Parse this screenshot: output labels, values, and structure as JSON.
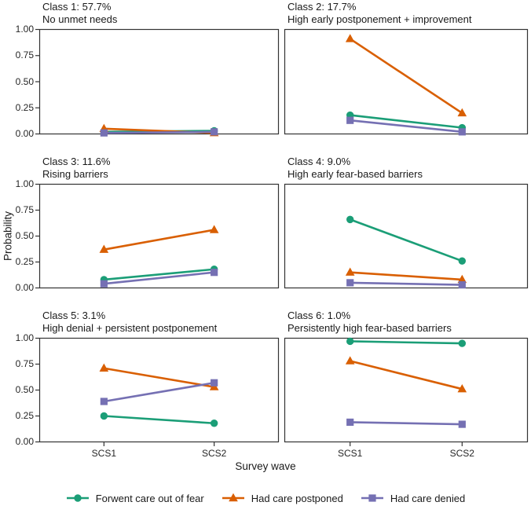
{
  "figure": {
    "ylabel": "Probability",
    "xlabel": "Survey wave"
  },
  "legend": {
    "position": "bottom",
    "items": [
      {
        "label": "Forwent care out of fear",
        "color": "#1B9E77",
        "marker": "circle"
      },
      {
        "label": "Had care postponed",
        "color": "#D95F02",
        "marker": "triangle"
      },
      {
        "label": "Had care denied",
        "color": "#7570B3",
        "marker": "square"
      }
    ]
  },
  "chart_data": {
    "type": "line",
    "grid": false,
    "panel_border": true,
    "x_categories": [
      "SCS1",
      "SCS2"
    ],
    "ylim": [
      0,
      1
    ],
    "yticks": [
      {
        "label": "0.00",
        "value": 0.0
      },
      {
        "label": "0.25",
        "value": 0.25
      },
      {
        "label": "0.50",
        "value": 0.5
      },
      {
        "label": "0.75",
        "value": 0.75
      },
      {
        "label": "1.00",
        "value": 1.0
      }
    ],
    "facets": [
      {
        "title": "Class 1: 57.7%",
        "subtitle": "No unmet needs",
        "series": [
          {
            "name": "Forwent care out of fear",
            "values": [
              0.02,
              0.03
            ]
          },
          {
            "name": "Had care postponed",
            "values": [
              0.05,
              0.01
            ]
          },
          {
            "name": "Had care denied",
            "values": [
              0.01,
              0.02
            ]
          }
        ]
      },
      {
        "title": "Class 2: 17.7%",
        "subtitle": "High early postponement + improvement",
        "series": [
          {
            "name": "Forwent care out of fear",
            "values": [
              0.18,
              0.06
            ]
          },
          {
            "name": "Had care postponed",
            "values": [
              0.91,
              0.2
            ]
          },
          {
            "name": "Had care denied",
            "values": [
              0.13,
              0.02
            ]
          }
        ]
      },
      {
        "title": "Class 3: 11.6%",
        "subtitle": "Rising barriers",
        "series": [
          {
            "name": "Forwent care out of fear",
            "values": [
              0.08,
              0.18
            ]
          },
          {
            "name": "Had care postponed",
            "values": [
              0.37,
              0.56
            ]
          },
          {
            "name": "Had care denied",
            "values": [
              0.04,
              0.15
            ]
          }
        ]
      },
      {
        "title": "Class 4: 9.0%",
        "subtitle": "High early fear-based barriers",
        "series": [
          {
            "name": "Forwent care out of fear",
            "values": [
              0.66,
              0.26
            ]
          },
          {
            "name": "Had care postponed",
            "values": [
              0.15,
              0.08
            ]
          },
          {
            "name": "Had care denied",
            "values": [
              0.05,
              0.03
            ]
          }
        ]
      },
      {
        "title": "Class 5: 3.1%",
        "subtitle": "High denial + persistent postponement",
        "series": [
          {
            "name": "Forwent care out of fear",
            "values": [
              0.25,
              0.18
            ]
          },
          {
            "name": "Had care postponed",
            "values": [
              0.71,
              0.53
            ]
          },
          {
            "name": "Had care denied",
            "values": [
              0.39,
              0.57
            ]
          }
        ]
      },
      {
        "title": "Class 6: 1.0%",
        "subtitle": "Persistently high fear-based barriers",
        "series": [
          {
            "name": "Forwent care out of fear",
            "values": [
              0.97,
              0.95
            ]
          },
          {
            "name": "Had care postponed",
            "values": [
              0.78,
              0.51
            ]
          },
          {
            "name": "Had care denied",
            "values": [
              0.19,
              0.17
            ]
          }
        ]
      }
    ]
  },
  "style": {
    "panel_border_color": "#333333",
    "tick_color": "#333333",
    "line_width": 2.6
  }
}
